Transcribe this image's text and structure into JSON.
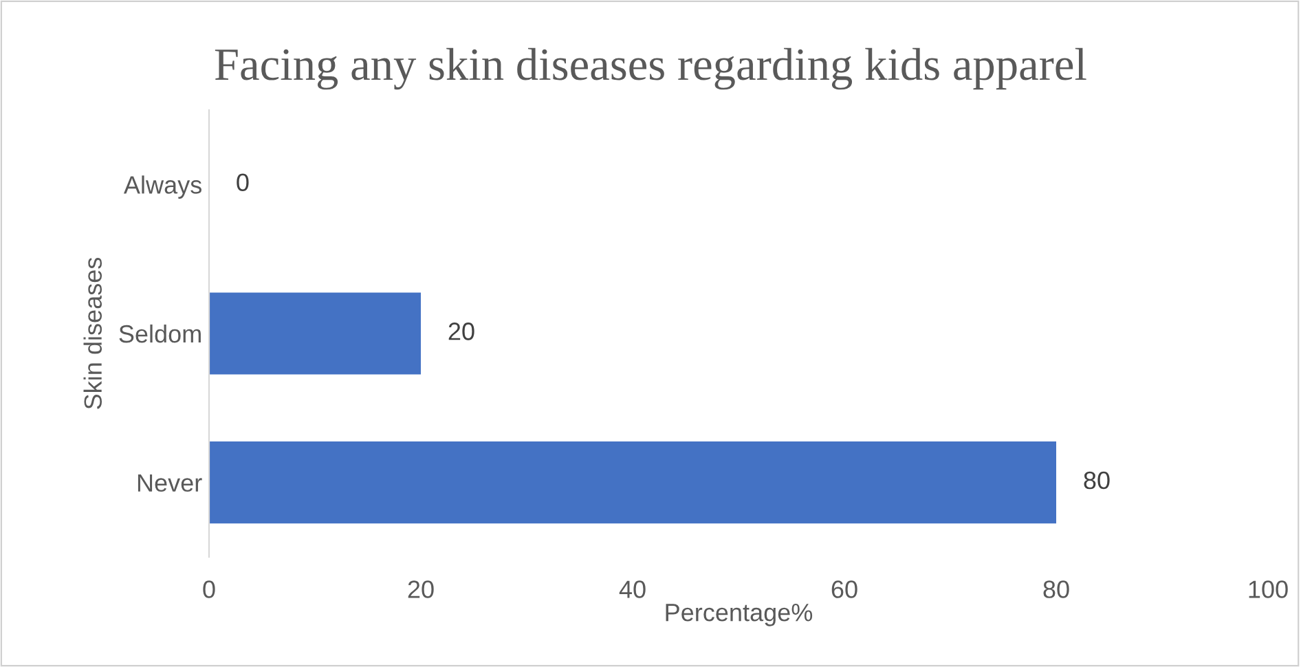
{
  "chart_data": {
    "type": "bar",
    "orientation": "horizontal",
    "title": "Facing any skin diseases regarding kids apparel",
    "xlabel": "Percentage%",
    "ylabel": "Skin diseases",
    "categories": [
      "Always",
      "Seldom",
      "Never"
    ],
    "values": [
      0,
      20,
      80
    ],
    "color": "#4472c4",
    "data_labels": true,
    "xlim": [
      0,
      100
    ],
    "xticks": [
      0,
      20,
      40,
      60,
      80,
      100
    ],
    "grid": false,
    "legend": false
  }
}
